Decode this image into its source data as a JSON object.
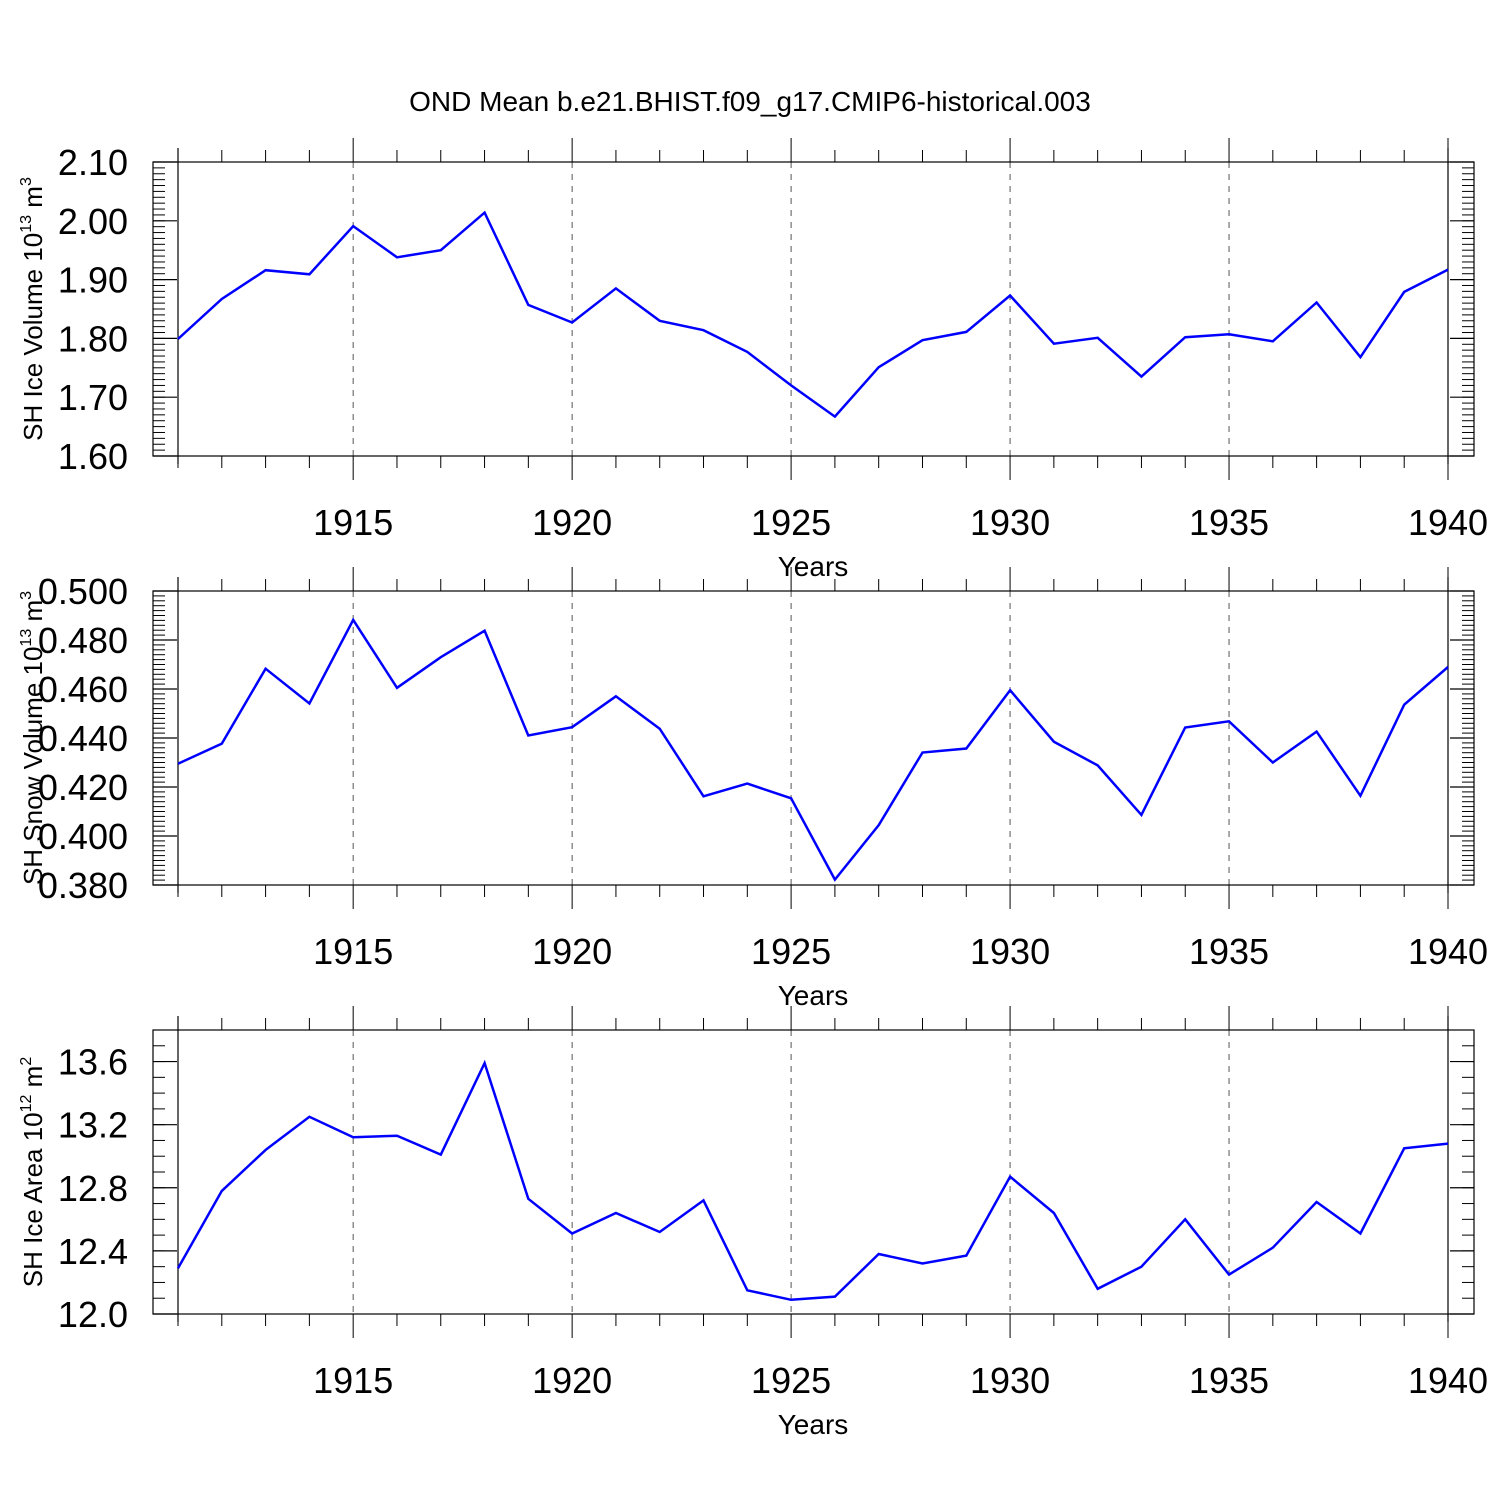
{
  "title": "OND Mean b.e21.BHIST.f09_g17.CMIP6-historical.003",
  "line_color": "#0000ff",
  "chart_data": [
    {
      "type": "line",
      "ylabel": "SH Ice Volume 10",
      "ylabel_exponent": "13",
      "ylabel_unit": "m",
      "ylabel_unit_exponent": "3",
      "xlabel": "Years",
      "xlim": [
        1911,
        1940
      ],
      "ylim": [
        1.6,
        2.1
      ],
      "x_ticks": [
        1915,
        1920,
        1925,
        1930,
        1935,
        1940
      ],
      "x_tick_labels": [
        "1915",
        "1920",
        "1925",
        "1930",
        "1935",
        "1940"
      ],
      "y_ticks": [
        1.6,
        1.7,
        1.8,
        1.9,
        2.0,
        2.1
      ],
      "y_tick_labels": [
        "1.60",
        "1.70",
        "1.80",
        "1.90",
        "2.00",
        "2.10"
      ],
      "grid": "vertical dashed at major x ticks",
      "x": [
        1911,
        1912,
        1913,
        1914,
        1915,
        1916,
        1917,
        1918,
        1919,
        1920,
        1921,
        1922,
        1923,
        1924,
        1925,
        1926,
        1927,
        1928,
        1929,
        1930,
        1931,
        1932,
        1933,
        1934,
        1935,
        1936,
        1937,
        1938,
        1939,
        1940
      ],
      "values": [
        1.799,
        1.867,
        1.916,
        1.909,
        1.991,
        1.938,
        1.95,
        2.014,
        1.857,
        1.827,
        1.885,
        1.83,
        1.814,
        1.777,
        1.72,
        1.667,
        1.751,
        1.797,
        1.811,
        1.873,
        1.791,
        1.801,
        1.735,
        1.802,
        1.807,
        1.795,
        1.861,
        1.768,
        1.879,
        1.917
      ]
    },
    {
      "type": "line",
      "ylabel": "SH Snow Volume 10",
      "ylabel_exponent": "13",
      "ylabel_unit": "m",
      "ylabel_unit_exponent": "3",
      "xlabel": "Years",
      "xlim": [
        1911,
        1940
      ],
      "ylim": [
        0.38,
        0.5
      ],
      "x_ticks": [
        1915,
        1920,
        1925,
        1930,
        1935,
        1940
      ],
      "x_tick_labels": [
        "1915",
        "1920",
        "1925",
        "1930",
        "1935",
        "1940"
      ],
      "y_ticks": [
        0.38,
        0.4,
        0.42,
        0.44,
        0.46,
        0.48,
        0.5
      ],
      "y_tick_labels": [
        "0.380",
        "0.400",
        "0.420",
        "0.440",
        "0.460",
        "0.480",
        "0.500"
      ],
      "grid": "vertical dashed at major x ticks",
      "x": [
        1911,
        1912,
        1913,
        1914,
        1915,
        1916,
        1917,
        1918,
        1919,
        1920,
        1921,
        1922,
        1923,
        1924,
        1925,
        1926,
        1927,
        1928,
        1929,
        1930,
        1931,
        1932,
        1933,
        1934,
        1935,
        1936,
        1937,
        1938,
        1939,
        1940
      ],
      "values": [
        0.4295,
        0.4377,
        0.4683,
        0.4541,
        0.4882,
        0.4605,
        0.473,
        0.4838,
        0.441,
        0.4444,
        0.457,
        0.4438,
        0.4162,
        0.4214,
        0.4154,
        0.3822,
        0.4044,
        0.4341,
        0.4357,
        0.4595,
        0.4385,
        0.4288,
        0.4086,
        0.4443,
        0.4468,
        0.43,
        0.4426,
        0.4164,
        0.4536,
        0.469
      ]
    },
    {
      "type": "line",
      "ylabel": "SH Ice Area 10",
      "ylabel_exponent": "12",
      "ylabel_unit": "m",
      "ylabel_unit_exponent": "2",
      "xlabel": "Years",
      "xlim": [
        1911,
        1940
      ],
      "ylim": [
        12.0,
        13.8
      ],
      "x_ticks": [
        1915,
        1920,
        1925,
        1930,
        1935,
        1940
      ],
      "x_tick_labels": [
        "1915",
        "1920",
        "1925",
        "1930",
        "1935",
        "1940"
      ],
      "y_ticks": [
        12.0,
        12.4,
        12.8,
        13.2,
        13.6
      ],
      "y_tick_labels": [
        "12.0",
        "12.4",
        "12.8",
        "13.2",
        "13.6"
      ],
      "grid": "vertical dashed at major x ticks",
      "x": [
        1911,
        1912,
        1913,
        1914,
        1915,
        1916,
        1917,
        1918,
        1919,
        1920,
        1921,
        1922,
        1923,
        1924,
        1925,
        1926,
        1927,
        1928,
        1929,
        1930,
        1931,
        1932,
        1933,
        1934,
        1935,
        1936,
        1937,
        1938,
        1939,
        1940
      ],
      "values": [
        12.29,
        12.78,
        13.04,
        13.25,
        13.12,
        13.13,
        13.01,
        13.59,
        12.73,
        12.51,
        12.64,
        12.52,
        12.72,
        12.15,
        12.09,
        12.11,
        12.38,
        12.32,
        12.37,
        12.87,
        12.64,
        12.16,
        12.3,
        12.6,
        12.25,
        12.42,
        12.71,
        12.51,
        13.05,
        13.08
      ]
    }
  ]
}
